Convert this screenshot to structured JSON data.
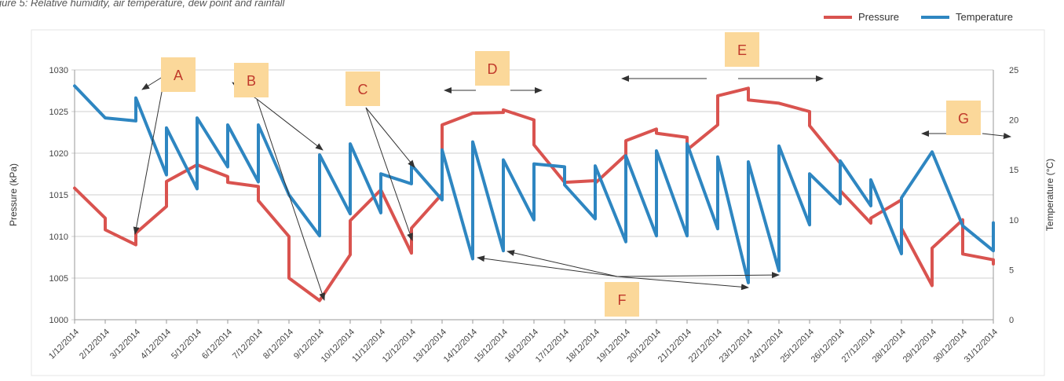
{
  "caption": "igure 5: Relative humidity, air temperature, dew point and rainfall",
  "legend": [
    {
      "label": "Pressure",
      "color": "#d9534f"
    },
    {
      "label": "Temperature",
      "color": "#2e86c1"
    }
  ],
  "chart_data": {
    "type": "line",
    "categories": [
      "1/12/2014",
      "2/12/2014",
      "3/12/2014",
      "4/12/2014",
      "5/12/2014",
      "6/12/2014",
      "7/12/2014",
      "8/12/2014",
      "9/12/2014",
      "10/12/2014",
      "11/12/2014",
      "12/12/2014",
      "13/12/2014",
      "14/12/2014",
      "15/12/2014",
      "16/12/2014",
      "17/12/2014",
      "18/12/2014",
      "19/12/2014",
      "20/12/2014",
      "21/12/2014",
      "22/12/2014",
      "23/12/2014",
      "24/12/2014",
      "25/12/2014",
      "26/12/2014",
      "27/12/2014",
      "28/12/2014",
      "29/12/2014",
      "30/12/2014",
      "31/12/2014"
    ],
    "ylabel": "Pressure (kPa)",
    "y2label": "Temperature (°C)",
    "ylim": [
      1000,
      1030
    ],
    "y2lim": [
      0,
      25
    ],
    "yticks": [
      1000,
      1005,
      1010,
      1015,
      1020,
      1025,
      1030
    ],
    "y2ticks": [
      0,
      5,
      10,
      15,
      20,
      25
    ],
    "grid": true,
    "legend_position": "top-right",
    "series": [
      {
        "name": "Pressure",
        "axis": "left",
        "color": "#d9534f",
        "points": [
          [
            0,
            1015.8
          ],
          [
            1,
            1012.2
          ],
          [
            1,
            1010.8
          ],
          [
            2,
            1009
          ],
          [
            2,
            1010.4
          ],
          [
            3,
            1013.6
          ],
          [
            3,
            1016.6
          ],
          [
            4,
            1018.6
          ],
          [
            5,
            1017.2
          ],
          [
            5,
            1016.5
          ],
          [
            6,
            1016
          ],
          [
            6,
            1014.3
          ],
          [
            7,
            1010
          ],
          [
            7,
            1005
          ],
          [
            8,
            1002.3
          ],
          [
            9,
            1007.8
          ],
          [
            9,
            1011.9
          ],
          [
            10,
            1015.6
          ],
          [
            11,
            1008
          ],
          [
            11,
            1011
          ],
          [
            12,
            1015.1
          ],
          [
            12,
            1023.4
          ],
          [
            13,
            1024.8
          ],
          [
            14,
            1024.9
          ],
          [
            14,
            1025.2
          ],
          [
            15,
            1024
          ],
          [
            15,
            1021
          ],
          [
            16,
            1016.5
          ],
          [
            17,
            1016.7
          ],
          [
            17,
            1016.4
          ],
          [
            18,
            1019.8
          ],
          [
            18,
            1021.5
          ],
          [
            19,
            1022.9
          ],
          [
            19,
            1022.4
          ],
          [
            20,
            1021.9
          ],
          [
            20,
            1020.4
          ],
          [
            21,
            1023.4
          ],
          [
            21,
            1026.9
          ],
          [
            22,
            1027.8
          ],
          [
            22,
            1026.4
          ],
          [
            23,
            1026
          ],
          [
            24,
            1025
          ],
          [
            24,
            1023.3
          ],
          [
            25,
            1018.8
          ],
          [
            25,
            1015.5
          ],
          [
            26,
            1011.6
          ],
          [
            26,
            1012.2
          ],
          [
            27,
            1014.4
          ],
          [
            27,
            1011
          ],
          [
            28,
            1004.1
          ],
          [
            28,
            1008.6
          ],
          [
            29,
            1012
          ],
          [
            29,
            1007.9
          ],
          [
            30,
            1007.2
          ],
          [
            30,
            1006.7
          ]
        ]
      },
      {
        "name": "Temperature",
        "axis": "right",
        "color": "#2e86c1",
        "points": [
          [
            0,
            23.4
          ],
          [
            1,
            20.2
          ],
          [
            2,
            19.9
          ],
          [
            2,
            22.2
          ],
          [
            3,
            14.5
          ],
          [
            3,
            19.2
          ],
          [
            4,
            13.1
          ],
          [
            4,
            20.2
          ],
          [
            5,
            15.3
          ],
          [
            5,
            19.5
          ],
          [
            6,
            13.8
          ],
          [
            6,
            19.5
          ],
          [
            7,
            12.5
          ],
          [
            8,
            8.4
          ],
          [
            8,
            16.5
          ],
          [
            9,
            10.6
          ],
          [
            9,
            17.6
          ],
          [
            10,
            10.7
          ],
          [
            10,
            14.6
          ],
          [
            11,
            13.6
          ],
          [
            11,
            15.5
          ],
          [
            12,
            12
          ],
          [
            12,
            17
          ],
          [
            13,
            6.1
          ],
          [
            13,
            17.8
          ],
          [
            14,
            6.9
          ],
          [
            14,
            16
          ],
          [
            15,
            10
          ],
          [
            15,
            15.6
          ],
          [
            16,
            15.3
          ],
          [
            16,
            13.5
          ],
          [
            17,
            10.1
          ],
          [
            17,
            15.4
          ],
          [
            18,
            7.8
          ],
          [
            18,
            16.4
          ],
          [
            19,
            8.4
          ],
          [
            19,
            16.9
          ],
          [
            20,
            8.4
          ],
          [
            20,
            17.6
          ],
          [
            21,
            9.1
          ],
          [
            21,
            16.3
          ],
          [
            22,
            3.7
          ],
          [
            22,
            15.8
          ],
          [
            23,
            4.9
          ],
          [
            23,
            17.4
          ],
          [
            24,
            9.5
          ],
          [
            24,
            14.6
          ],
          [
            25,
            11.6
          ],
          [
            25,
            15.9
          ],
          [
            26,
            11.4
          ],
          [
            26,
            14
          ],
          [
            27,
            6.6
          ],
          [
            27,
            12.2
          ],
          [
            28,
            16.8
          ],
          [
            29,
            9.4
          ],
          [
            30,
            6.9
          ],
          [
            30,
            9.7
          ]
        ]
      }
    ],
    "annotations": [
      {
        "label": "A"
      },
      {
        "label": "B"
      },
      {
        "label": "C"
      },
      {
        "label": "D"
      },
      {
        "label": "E"
      },
      {
        "label": "F"
      },
      {
        "label": "G"
      }
    ]
  }
}
